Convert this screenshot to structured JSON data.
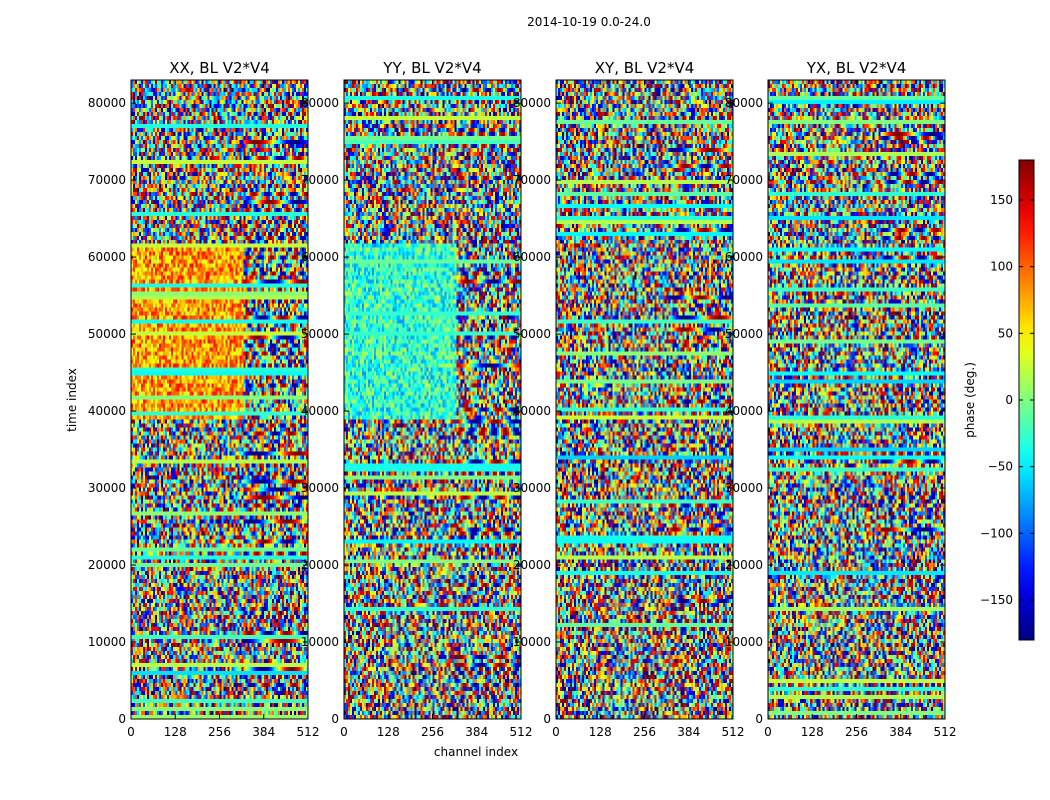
{
  "chart_data": {
    "type": "heatmap",
    "suptitle": "2014-10-19 0.0-24.0",
    "xlabel": "channel index",
    "ylabel": "time index",
    "xlim": [
      0,
      512
    ],
    "ylim": [
      0,
      83000
    ],
    "xticks": [
      0,
      128,
      256,
      384,
      512
    ],
    "yticks": [
      0,
      10000,
      20000,
      30000,
      40000,
      50000,
      60000,
      70000,
      80000
    ],
    "colormap": "jet",
    "panels": [
      {
        "title": "XX, BL V2*V4",
        "polarization": "XX"
      },
      {
        "title": "YY, BL V2*V4",
        "polarization": "YY"
      },
      {
        "title": "XY, BL V2*V4",
        "polarization": "XY"
      },
      {
        "title": "YX, BL V2*V4",
        "polarization": "YX"
      }
    ],
    "colorbar": {
      "label": "phase (deg.)",
      "min": -180,
      "max": 180,
      "ticks": [
        -150,
        -100,
        -50,
        0,
        50,
        100,
        150
      ]
    }
  }
}
